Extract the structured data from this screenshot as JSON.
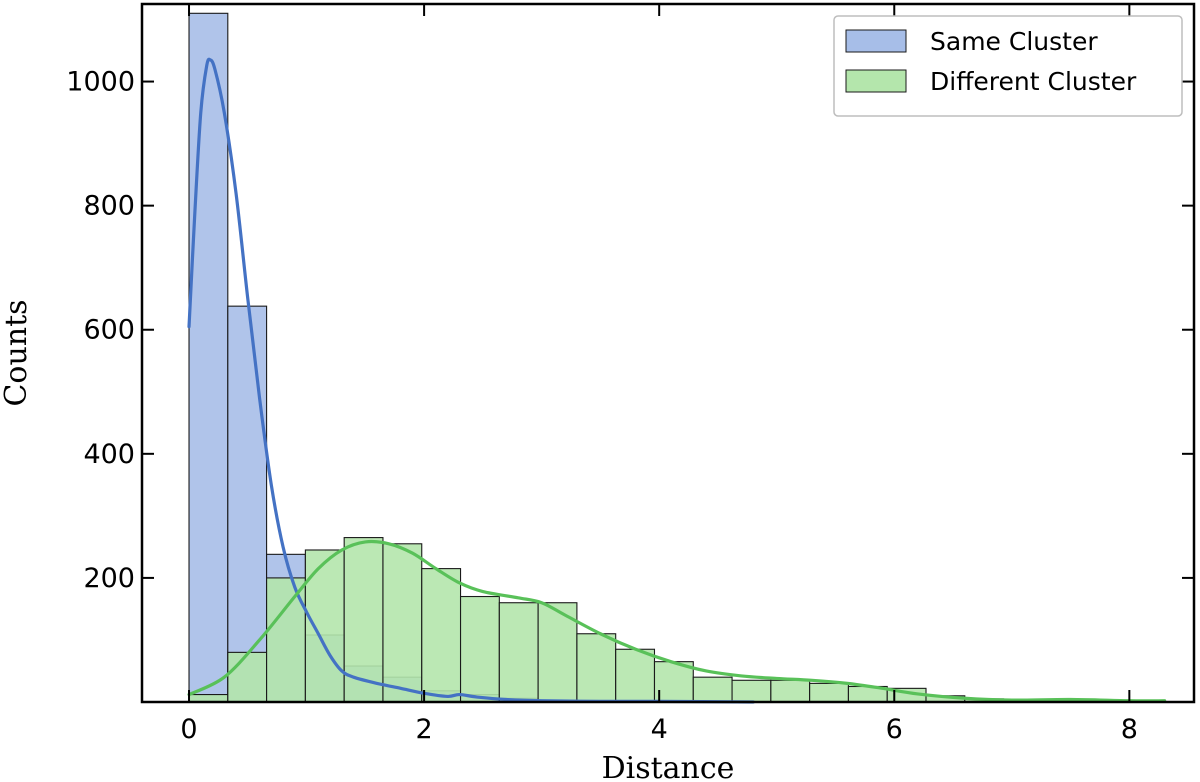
{
  "chart_data": {
    "type": "bar",
    "title": "",
    "xlabel": "Distance",
    "ylabel": "Counts",
    "xlim": [
      -0.4,
      8.55
    ],
    "ylim": [
      0,
      1125
    ],
    "xticks": [
      0,
      2,
      4,
      6,
      8
    ],
    "yticks": [
      200,
      400,
      600,
      800,
      1000
    ],
    "grid": false,
    "legend": {
      "placement": "top-right"
    },
    "series": [
      {
        "name": "Same Cluster",
        "color": "#4472C4",
        "fill": "#A7BEE8",
        "bins": [
          [
            0.0,
            0.33,
            1110
          ],
          [
            0.33,
            0.66,
            638
          ],
          [
            0.66,
            0.99,
            238
          ],
          [
            0.99,
            1.32,
            108
          ],
          [
            1.32,
            1.65,
            58
          ],
          [
            1.65,
            1.98,
            40
          ],
          [
            1.98,
            2.31,
            18
          ],
          [
            2.31,
            2.64,
            12
          ],
          [
            2.64,
            2.97,
            6
          ],
          [
            2.97,
            3.3,
            3
          ],
          [
            3.3,
            3.63,
            2
          ],
          [
            3.63,
            3.96,
            1
          ],
          [
            3.96,
            4.29,
            1
          ],
          [
            4.29,
            4.62,
            1
          ]
        ],
        "kde": [
          [
            0.0,
            605
          ],
          [
            0.05,
            790
          ],
          [
            0.1,
            950
          ],
          [
            0.15,
            1025
          ],
          [
            0.18,
            1035
          ],
          [
            0.22,
            1020
          ],
          [
            0.3,
            950
          ],
          [
            0.4,
            820
          ],
          [
            0.5,
            650
          ],
          [
            0.6,
            490
          ],
          [
            0.7,
            350
          ],
          [
            0.8,
            250
          ],
          [
            0.9,
            185
          ],
          [
            1.0,
            145
          ],
          [
            1.1,
            110
          ],
          [
            1.2,
            75
          ],
          [
            1.3,
            50
          ],
          [
            1.4,
            40
          ],
          [
            1.6,
            30
          ],
          [
            1.8,
            22
          ],
          [
            2.0,
            14
          ],
          [
            2.2,
            9
          ],
          [
            2.3,
            12
          ],
          [
            2.45,
            8
          ],
          [
            2.7,
            4
          ],
          [
            3.0,
            2
          ],
          [
            3.5,
            1
          ],
          [
            4.0,
            1
          ],
          [
            4.8,
            0
          ]
        ]
      },
      {
        "name": "Different Cluster",
        "color": "#59C159",
        "fill": "#B4E6AC",
        "bins": [
          [
            0.0,
            0.33,
            12
          ],
          [
            0.33,
            0.66,
            80
          ],
          [
            0.66,
            0.99,
            200
          ],
          [
            0.99,
            1.32,
            245
          ],
          [
            1.32,
            1.65,
            265
          ],
          [
            1.65,
            1.98,
            255
          ],
          [
            1.98,
            2.31,
            215
          ],
          [
            2.31,
            2.64,
            170
          ],
          [
            2.64,
            2.97,
            160
          ],
          [
            2.97,
            3.3,
            160
          ],
          [
            3.3,
            3.63,
            110
          ],
          [
            3.63,
            3.96,
            85
          ],
          [
            3.96,
            4.29,
            65
          ],
          [
            4.29,
            4.62,
            40
          ],
          [
            4.62,
            4.95,
            35
          ],
          [
            4.95,
            5.28,
            35
          ],
          [
            5.28,
            5.61,
            30
          ],
          [
            5.61,
            5.94,
            25
          ],
          [
            5.94,
            6.27,
            22
          ],
          [
            6.27,
            6.6,
            10
          ],
          [
            6.6,
            6.93,
            5
          ],
          [
            6.93,
            7.26,
            3
          ],
          [
            7.26,
            7.59,
            3
          ],
          [
            7.59,
            7.92,
            2
          ],
          [
            7.92,
            8.25,
            2
          ]
        ],
        "kde": [
          [
            0.0,
            12
          ],
          [
            0.3,
            40
          ],
          [
            0.6,
            100
          ],
          [
            0.9,
            170
          ],
          [
            1.1,
            215
          ],
          [
            1.3,
            245
          ],
          [
            1.5,
            258
          ],
          [
            1.7,
            255
          ],
          [
            1.9,
            240
          ],
          [
            2.1,
            215
          ],
          [
            2.3,
            192
          ],
          [
            2.5,
            178
          ],
          [
            2.8,
            168
          ],
          [
            3.0,
            160
          ],
          [
            3.2,
            140
          ],
          [
            3.5,
            110
          ],
          [
            3.8,
            85
          ],
          [
            4.1,
            65
          ],
          [
            4.4,
            50
          ],
          [
            4.7,
            42
          ],
          [
            5.0,
            38
          ],
          [
            5.3,
            35
          ],
          [
            5.6,
            30
          ],
          [
            5.9,
            22
          ],
          [
            6.2,
            13
          ],
          [
            6.6,
            6
          ],
          [
            7.0,
            3
          ],
          [
            7.5,
            4
          ],
          [
            8.0,
            2
          ],
          [
            8.3,
            2
          ]
        ]
      }
    ]
  }
}
